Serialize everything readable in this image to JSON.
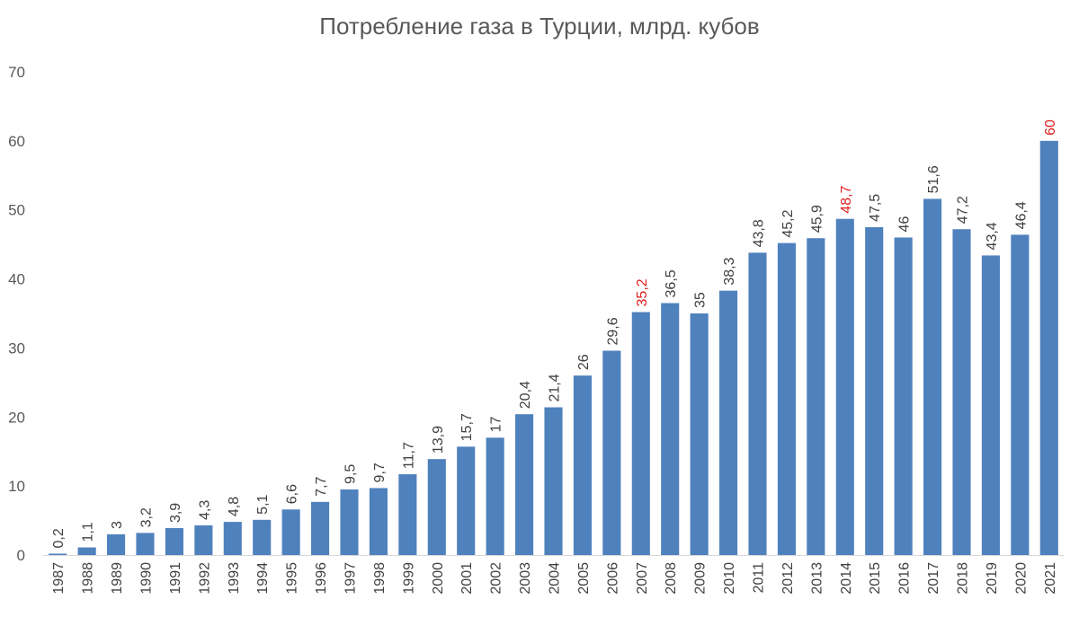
{
  "chart_data": {
    "type": "bar",
    "title": "Потребление газа в Турции, млрд. кубов",
    "xlabel": "",
    "ylabel": "",
    "ylim": [
      0,
      70
    ],
    "yticks": [
      0,
      10,
      20,
      30,
      40,
      50,
      60,
      70
    ],
    "grid": false,
    "bar_color": "#4F81BD",
    "label_color": "#404040",
    "highlight_color": "#E02020",
    "categories": [
      "1987",
      "1988",
      "1989",
      "1990",
      "1991",
      "1992",
      "1993",
      "1994",
      "1995",
      "1996",
      "1997",
      "1998",
      "1999",
      "2000",
      "2001",
      "2002",
      "2003",
      "2004",
      "2005",
      "2006",
      "2007",
      "2008",
      "2009",
      "2010",
      "2011",
      "2012",
      "2013",
      "2014",
      "2015",
      "2016",
      "2017",
      "2018",
      "2019",
      "2020",
      "2021"
    ],
    "values": [
      0.2,
      1.1,
      3,
      3.2,
      3.9,
      4.3,
      4.8,
      5.1,
      6.6,
      7.7,
      9.5,
      9.7,
      11.7,
      13.9,
      15.7,
      17,
      20.4,
      21.4,
      26,
      29.6,
      35.2,
      36.5,
      35,
      38.3,
      43.8,
      45.2,
      45.9,
      48.7,
      47.5,
      46,
      51.6,
      47.2,
      43.4,
      46.4,
      60
    ],
    "data_labels": [
      "0,2",
      "1,1",
      "3",
      "3,2",
      "3,9",
      "4,3",
      "4,8",
      "5,1",
      "6,6",
      "7,7",
      "9,5",
      "9,7",
      "11,7",
      "13,9",
      "15,7",
      "17",
      "20,4",
      "21,4",
      "26",
      "29,6",
      "35,2",
      "36,5",
      "35",
      "38,3",
      "43,8",
      "45,2",
      "45,9",
      "48,7",
      "47,5",
      "46",
      "51,6",
      "47,2",
      "43,4",
      "46,4",
      "60"
    ],
    "highlighted": [
      "2007",
      "2014",
      "2021"
    ]
  }
}
